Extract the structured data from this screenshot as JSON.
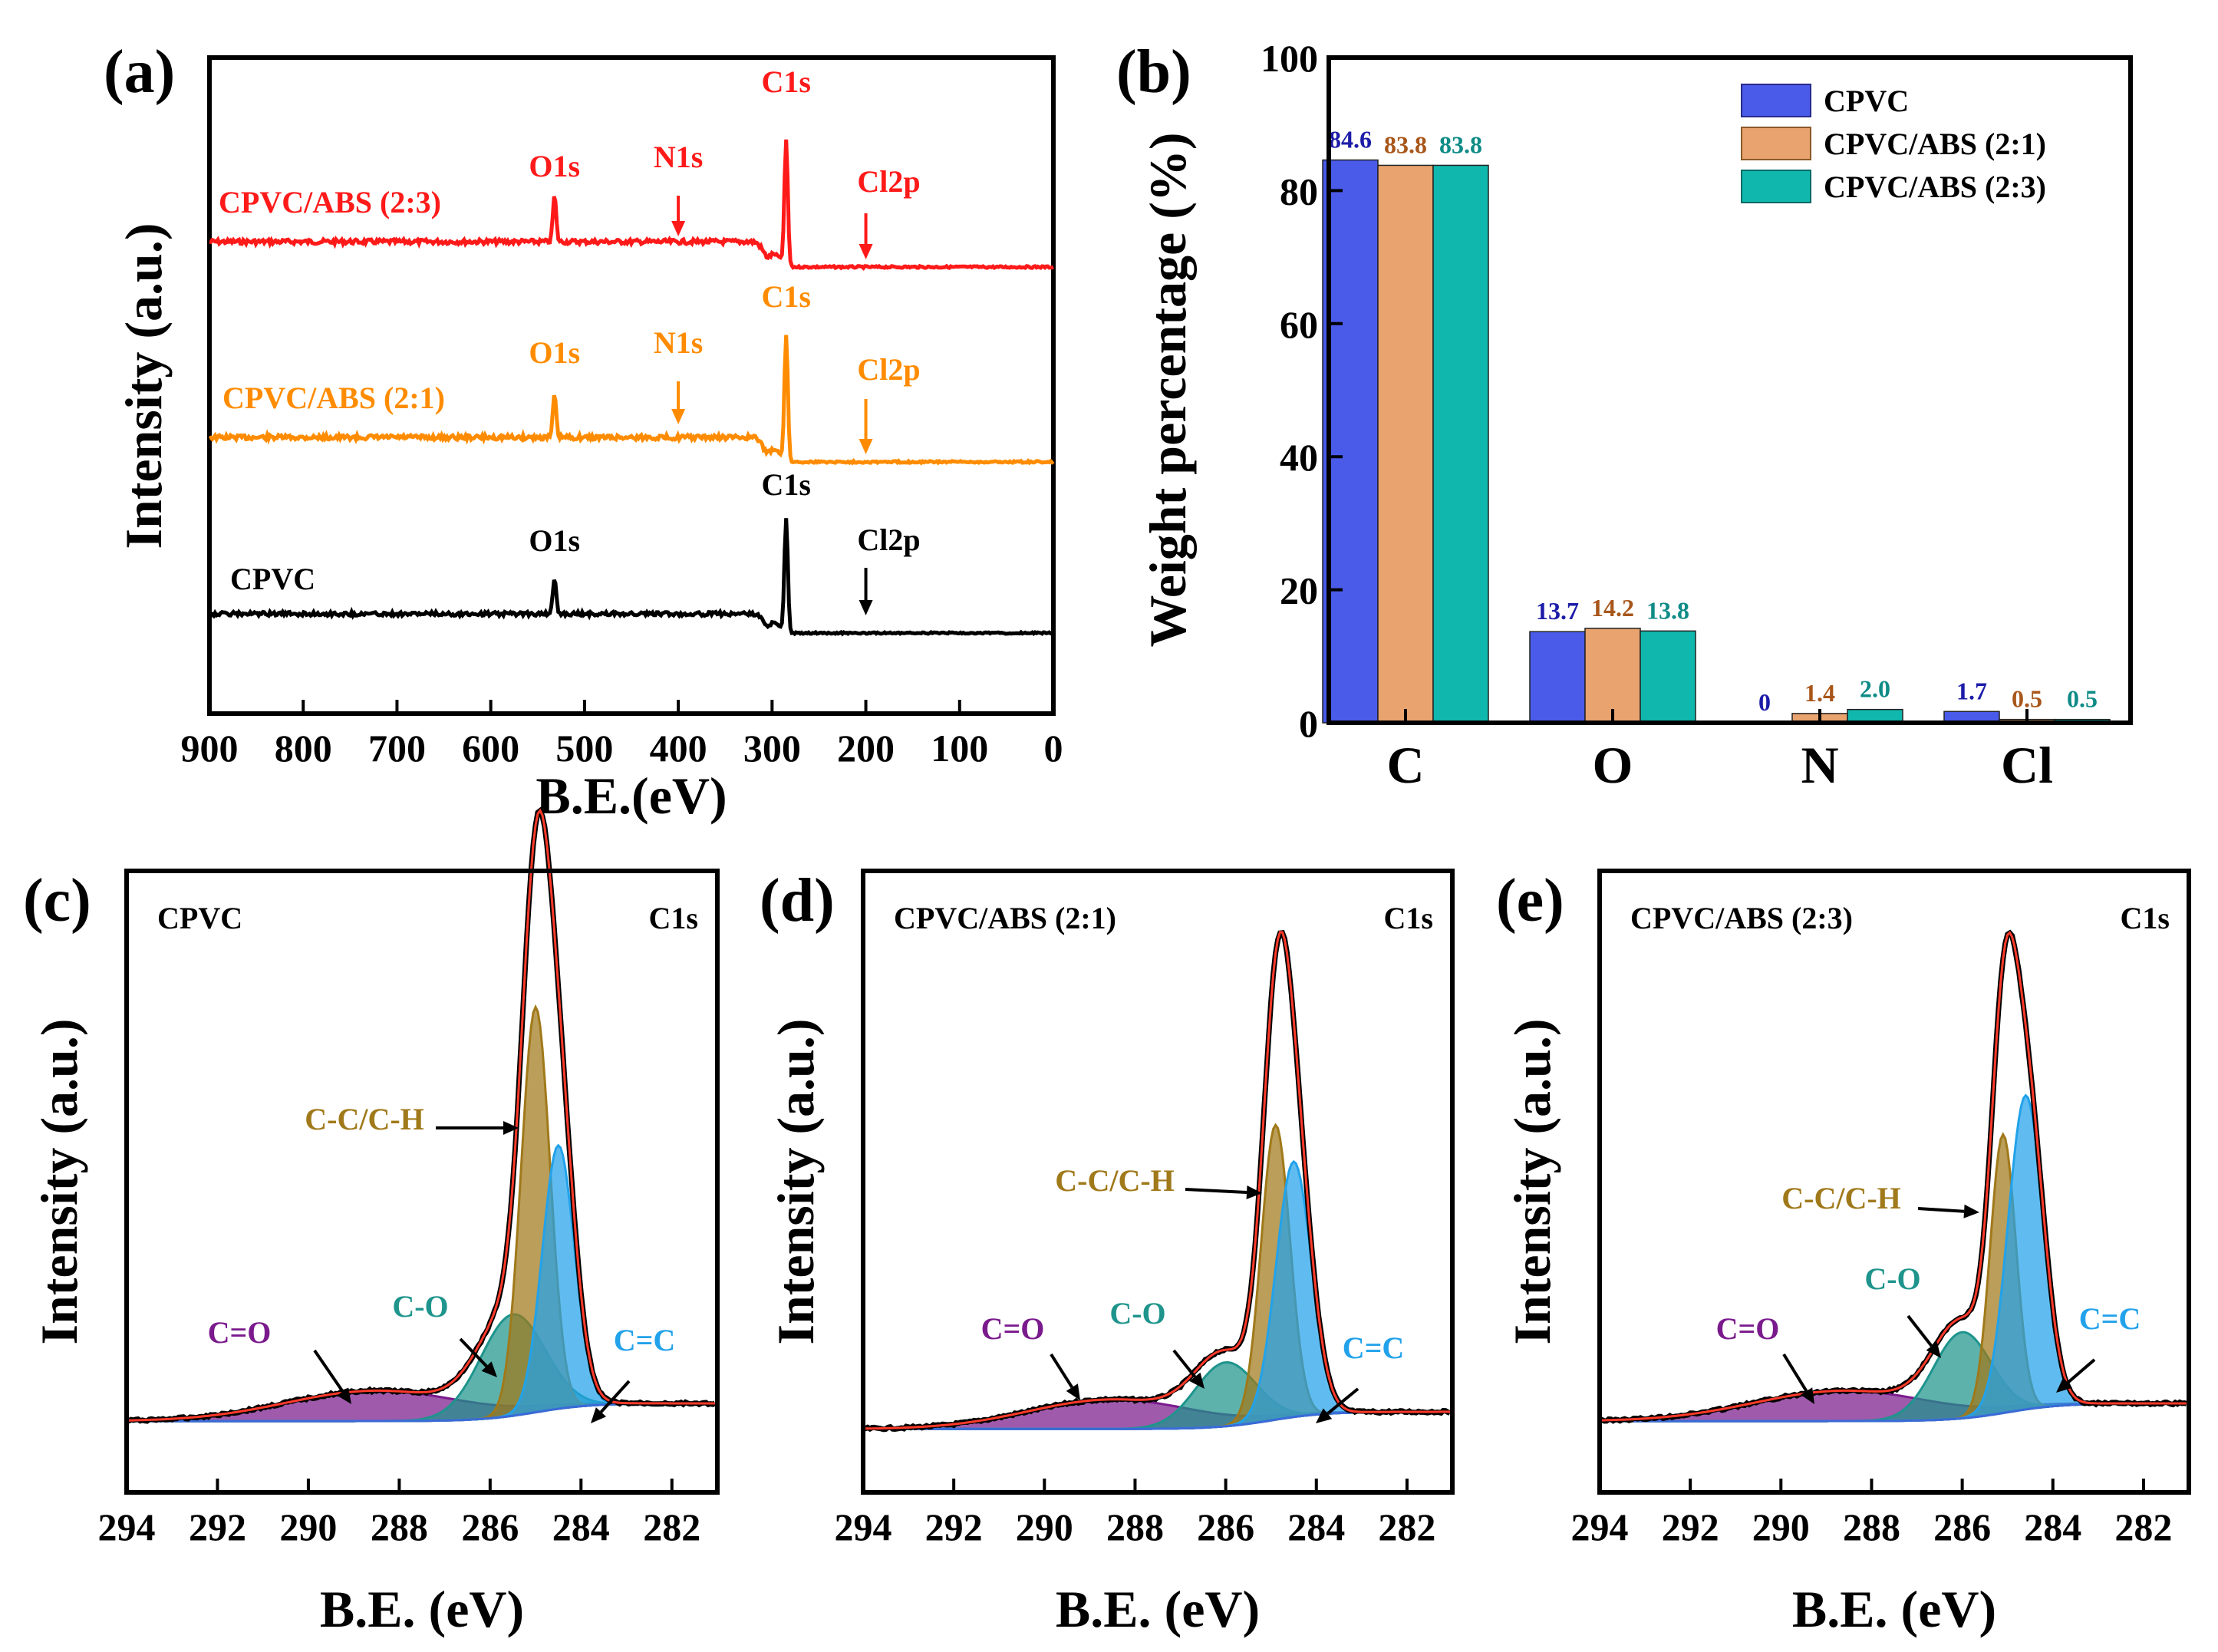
{
  "colors": {
    "red": "#ff1a1a",
    "orange": "#ff8c00",
    "black": "#000000",
    "cpvc_bar": "#4a5bea",
    "abs21_bar": "#e8a36e",
    "abs23_bar": "#10b7ad",
    "cpvc_label": "#1c1ca8",
    "abs21_label": "#a8561a",
    "abs23_label": "#0e8b86",
    "cc_ch": "#a0791a",
    "c_o": "#1e948c",
    "c_eq_o": "#7a1a8c",
    "c_eq_c": "#22a2ea"
  },
  "chart_data": [
    {
      "panel": "(a)",
      "type": "line",
      "xlabel": "B.E.(eV)",
      "ylabel": "Intensity (a.u.)",
      "xlim": [
        900,
        0
      ],
      "xticks": [
        "900",
        "800",
        "700",
        "600",
        "500",
        "400",
        "300",
        "200",
        "100",
        "0"
      ],
      "series": [
        {
          "name": "CPVC/ABS (2:3)",
          "color": "#ff1a1a",
          "peak_labels": [
            {
              "text": "O1s",
              "x": 532
            },
            {
              "text": "N1s",
              "x": 400
            },
            {
              "text": "C1s",
              "x": 285
            },
            {
              "text": "Cl2p",
              "x": 200
            }
          ]
        },
        {
          "name": "CPVC/ABS (2:1)",
          "color": "#ff8c00",
          "peak_labels": [
            {
              "text": "O1s",
              "x": 532
            },
            {
              "text": "N1s",
              "x": 400
            },
            {
              "text": "C1s",
              "x": 285
            },
            {
              "text": "Cl2p",
              "x": 200
            }
          ]
        },
        {
          "name": "CPVC",
          "color": "#000000",
          "peak_labels": [
            {
              "text": "O1s",
              "x": 532
            },
            {
              "text": "C1s",
              "x": 285
            },
            {
              "text": "Cl2p",
              "x": 200
            }
          ]
        }
      ]
    },
    {
      "panel": "(b)",
      "type": "bar",
      "ylabel": "Weight percentage (%)",
      "ylim": [
        0,
        100
      ],
      "yticks": [
        "0",
        "20",
        "40",
        "60",
        "80",
        "100"
      ],
      "categories": [
        "C",
        "O",
        "N",
        "Cl"
      ],
      "series": [
        {
          "name": "CPVC",
          "values": [
            84.6,
            13.7,
            0,
            1.7
          ],
          "labels": [
            "84.6",
            "13.7",
            "0",
            "1.7"
          ]
        },
        {
          "name": "CPVC/ABS (2:1)",
          "values": [
            83.8,
            14.2,
            1.4,
            0.5
          ],
          "labels": [
            "83.8",
            "14.2",
            "1.4",
            "0.5"
          ]
        },
        {
          "name": "CPVC/ABS (2:3)",
          "values": [
            83.8,
            13.8,
            2.0,
            0.5
          ],
          "labels": [
            "83.8",
            "13.8",
            "2.0",
            "0.5"
          ]
        }
      ],
      "legend_position": "top-right"
    },
    {
      "panel": "(c)",
      "type": "area",
      "title": "CPVC",
      "region": "C1s",
      "xlabel": "B.E. (eV)",
      "ylabel": "Intensity (a.u.)",
      "xlim": [
        294,
        281
      ],
      "xticks": [
        "294",
        "292",
        "290",
        "288",
        "286",
        "284",
        "282"
      ],
      "components": [
        {
          "name": "C-C/C-H",
          "center": 285.0,
          "height": 0.8,
          "width": 0.45
        },
        {
          "name": "C=C",
          "center": 284.5,
          "height": 0.52,
          "width": 0.5
        },
        {
          "name": "C-O",
          "center": 285.5,
          "height": 0.2,
          "width": 1.0
        },
        {
          "name": "C=O",
          "center": 288.5,
          "height": 0.06,
          "width": 2.8
        }
      ],
      "envelope_peak": 1.0
    },
    {
      "panel": "(d)",
      "type": "area",
      "title": "CPVC/ABS (2:1)",
      "region": "C1s",
      "xlabel": "B.E. (eV)",
      "ylabel": "Intensity (a.u.)",
      "xlim": [
        294,
        281
      ],
      "xticks": [
        "294",
        "292",
        "290",
        "288",
        "286",
        "284",
        "282"
      ],
      "components": [
        {
          "name": "C-C/C-H",
          "center": 284.9,
          "height": 0.6,
          "width": 0.45
        },
        {
          "name": "C=C",
          "center": 284.5,
          "height": 0.52,
          "width": 0.55
        },
        {
          "name": "C-O",
          "center": 286.0,
          "height": 0.13,
          "width": 0.95
        },
        {
          "name": "C=O",
          "center": 288.5,
          "height": 0.06,
          "width": 2.6
        }
      ],
      "envelope_peak": 1.0
    },
    {
      "panel": "(e)",
      "type": "area",
      "title": "CPVC/ABS (2:3)",
      "region": "C1s",
      "xlabel": "B.E. (eV)",
      "ylabel": "Intensity (a.u.)",
      "xlim": [
        294,
        281
      ],
      "xticks": [
        "294",
        "292",
        "290",
        "288",
        "286",
        "284",
        "282"
      ],
      "components": [
        {
          "name": "C-C/C-H",
          "center": 285.1,
          "height": 0.55,
          "width": 0.4
        },
        {
          "name": "C=C",
          "center": 284.6,
          "height": 0.62,
          "width": 0.55
        },
        {
          "name": "C-O",
          "center": 286.0,
          "height": 0.17,
          "width": 0.9
        },
        {
          "name": "C=O",
          "center": 288.6,
          "height": 0.06,
          "width": 2.8
        }
      ],
      "envelope_peak": 1.0
    }
  ]
}
